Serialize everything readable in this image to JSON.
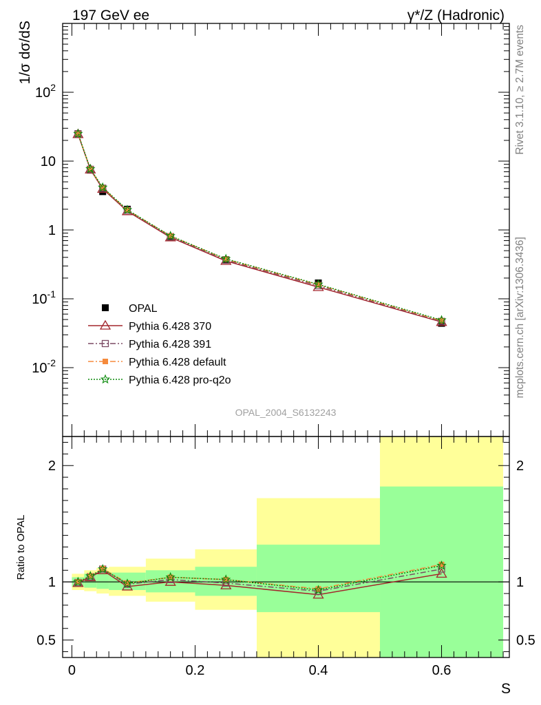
{
  "header": {
    "left_title": "197 GeV ee",
    "right_title": "γ*/Z (Hadronic)"
  },
  "side_text": {
    "rivet": "Rivet 3.1.10, ≥ 2.7M events",
    "mcplots": "mcplots.cern.ch [arXiv:1306.3436]"
  },
  "chart_data": [
    {
      "type": "line",
      "panel": "main",
      "title": "",
      "watermark": "OPAL_2004_S6132243",
      "ylabel": "1/σ dσ/dS",
      "yscale": "log",
      "ylim": [
        0.001,
        1000
      ],
      "xlim": [
        -0.015,
        0.71
      ],
      "ytick_labels": [
        "10^-2",
        "10^-1",
        "1",
        "10",
        "10^2"
      ],
      "legend_position": "lower-left",
      "x": [
        0.01,
        0.03,
        0.05,
        0.09,
        0.16,
        0.25,
        0.4,
        0.6
      ],
      "series": [
        {
          "name": "OPAL",
          "marker": "square",
          "color": "#000000",
          "values": [
            25.0,
            7.4,
            3.6,
            2.0,
            0.79,
            0.37,
            0.17,
            0.044
          ]
        },
        {
          "name": "Pythia 6.428 370",
          "marker": "triangle",
          "line": "solid",
          "color": "#a3252c",
          "values": [
            24.6,
            7.55,
            3.95,
            1.87,
            0.78,
            0.355,
            0.148,
            0.046
          ]
        },
        {
          "name": "Pythia 6.428 391",
          "marker": "open-square",
          "line": "dashdot",
          "color": "#7b4a63",
          "values": [
            24.8,
            7.6,
            4.05,
            1.93,
            0.8,
            0.365,
            0.155,
            0.047
          ]
        },
        {
          "name": "Pythia 6.428 default",
          "marker": "filled-square",
          "line": "dashdot",
          "color": "#f58a3c",
          "values": [
            24.9,
            7.65,
            4.1,
            1.95,
            0.82,
            0.375,
            0.16,
            0.048
          ]
        },
        {
          "name": "Pythia 6.428 pro-q2o",
          "marker": "star",
          "line": "dotted",
          "color": "#0b8a0b",
          "values": [
            25.0,
            7.7,
            4.15,
            1.96,
            0.82,
            0.38,
            0.162,
            0.049
          ]
        }
      ]
    },
    {
      "type": "line",
      "panel": "ratio",
      "ylabel": "Ratio to OPAL",
      "xlabel": "S",
      "ylim": [
        0.35,
        2.25
      ],
      "xlim": [
        -0.015,
        0.71
      ],
      "yticks": [
        0.5,
        1,
        2
      ],
      "ytick_labels": [
        "0.5",
        "1",
        "2"
      ],
      "xticks": [
        0,
        0.2,
        0.4,
        0.6
      ],
      "xtick_labels": [
        "0",
        "0.2",
        "0.4",
        "0.6"
      ],
      "bins": [
        {
          "lo": 0.0,
          "hi": 0.02,
          "green": [
            0.96,
            1.04
          ],
          "yellow": [
            0.93,
            1.07
          ]
        },
        {
          "lo": 0.02,
          "hi": 0.04,
          "green": [
            0.95,
            1.07
          ],
          "yellow": [
            0.92,
            1.1
          ]
        },
        {
          "lo": 0.04,
          "hi": 0.06,
          "green": [
            0.94,
            1.08
          ],
          "yellow": [
            0.9,
            1.12
          ]
        },
        {
          "lo": 0.06,
          "hi": 0.12,
          "green": [
            0.93,
            1.08
          ],
          "yellow": [
            0.88,
            1.13
          ]
        },
        {
          "lo": 0.12,
          "hi": 0.2,
          "green": [
            0.91,
            1.1
          ],
          "yellow": [
            0.83,
            1.2
          ]
        },
        {
          "lo": 0.2,
          "hi": 0.3,
          "green": [
            0.88,
            1.13
          ],
          "yellow": [
            0.76,
            1.28
          ]
        },
        {
          "lo": 0.3,
          "hi": 0.5,
          "green": [
            0.74,
            1.32
          ],
          "yellow": [
            0.35,
            1.72
          ]
        },
        {
          "lo": 0.5,
          "hi": 0.7,
          "green": [
            0.35,
            1.82
          ],
          "yellow": [
            0.35,
            2.25
          ]
        }
      ],
      "x": [
        0.01,
        0.03,
        0.05,
        0.09,
        0.16,
        0.25,
        0.4,
        0.6
      ],
      "series": [
        {
          "name": "Pythia 6.428 370",
          "color": "#a3252c",
          "values": [
            0.99,
            1.04,
            1.1,
            0.96,
            1.0,
            0.97,
            0.89,
            1.07
          ]
        },
        {
          "name": "Pythia 6.428 391",
          "color": "#7b4a63",
          "values": [
            0.995,
            1.045,
            1.11,
            0.98,
            1.02,
            0.99,
            0.92,
            1.11
          ]
        },
        {
          "name": "Pythia 6.428 default",
          "color": "#f58a3c",
          "values": [
            1.0,
            1.05,
            1.115,
            0.99,
            1.04,
            1.02,
            0.94,
            1.15
          ]
        },
        {
          "name": "Pythia 6.428 pro-q2o",
          "color": "#0b8a0b",
          "values": [
            1.0,
            1.05,
            1.11,
            0.985,
            1.04,
            1.02,
            0.93,
            1.14
          ]
        }
      ]
    }
  ]
}
